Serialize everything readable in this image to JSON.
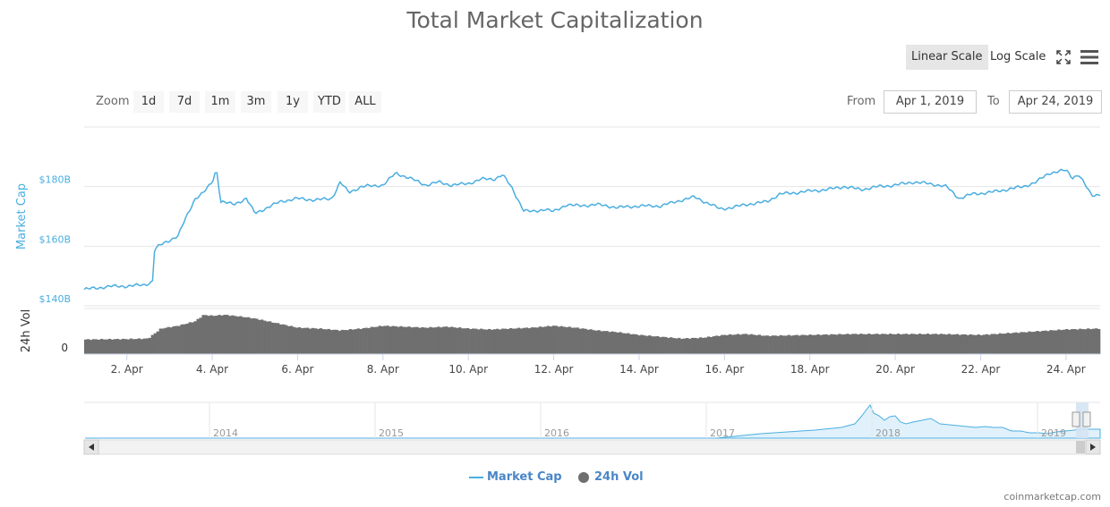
{
  "header": {
    "title": "Total Market Capitalization",
    "linear_label": "Linear Scale",
    "log_label": "Log Scale"
  },
  "icons": {
    "fullscreen": "fullscreen-icon",
    "menu": "menu-icon"
  },
  "zoom": {
    "label": "Zoom",
    "buttons": [
      "1d",
      "7d",
      "1m",
      "3m",
      "1y",
      "YTD",
      "ALL"
    ]
  },
  "range": {
    "from_label": "From",
    "from_value": "Apr 1, 2019",
    "to_label": "To",
    "to_value": "Apr 24, 2019"
  },
  "navigator": {
    "years": [
      "2014",
      "2015",
      "2016",
      "2017",
      "2018",
      "2019"
    ]
  },
  "legend": {
    "market_cap": "Market Cap",
    "vol": "24h Vol"
  },
  "credit": "coinmarketcap.com",
  "colors": {
    "market_cap": "#4aaee0",
    "volume": "#6f6f6f",
    "title": "#666666"
  },
  "chart_data": {
    "type": "line",
    "title": "Total Market Capitalization",
    "x_labels": [
      "2. Apr",
      "4. Apr",
      "6. Apr",
      "8. Apr",
      "10. Apr",
      "12. Apr",
      "14. Apr",
      "16. Apr",
      "18. Apr",
      "20. Apr",
      "22. Apr",
      "24. Apr"
    ],
    "xlim": [
      1.0,
      24.8
    ],
    "y_axis": {
      "label": "Market Cap",
      "unit": "B",
      "ticks": [
        "$140B",
        "$160B",
        "$180B"
      ],
      "ylim": [
        140,
        200
      ]
    },
    "vol_axis": {
      "label": "24h Vol",
      "ticks": [
        "0"
      ]
    },
    "series": [
      {
        "name": "Market Cap",
        "x": [
          1.0,
          1.3,
          1.6,
          2.0,
          2.4,
          2.6,
          2.65,
          2.8,
          3.0,
          3.2,
          3.4,
          3.6,
          3.8,
          4.0,
          4.1,
          4.2,
          4.5,
          4.8,
          5.0,
          5.3,
          5.6,
          6.0,
          6.4,
          6.8,
          7.0,
          7.2,
          7.5,
          8.0,
          8.3,
          8.6,
          9.0,
          9.3,
          9.6,
          10.0,
          10.3,
          10.6,
          10.8,
          11.0,
          11.3,
          11.5,
          11.8,
          12.0,
          12.3,
          12.6,
          13.0,
          13.5,
          14.0,
          14.5,
          15.0,
          15.3,
          15.6,
          15.9,
          16.2,
          16.5,
          16.8,
          17.0,
          17.3,
          17.7,
          18.0,
          18.4,
          18.8,
          19.2,
          19.6,
          20.0,
          20.4,
          20.8,
          21.2,
          21.5,
          21.8,
          22.2,
          22.6,
          23.0,
          23.3,
          23.6,
          23.8,
          24.0,
          24.15,
          24.3,
          24.6,
          24.8
        ],
        "values": [
          145.5,
          146.0,
          146.5,
          146.6,
          147.0,
          148.0,
          159.0,
          160.5,
          162.0,
          163.5,
          170.0,
          176.0,
          178.0,
          181.5,
          186.0,
          175.0,
          174.0,
          176.0,
          171.0,
          173.0,
          175.0,
          176.0,
          175.5,
          176.0,
          181.5,
          178.0,
          180.0,
          180.5,
          184.5,
          183.0,
          180.5,
          181.5,
          180.5,
          181.0,
          182.5,
          182.5,
          184.0,
          180.0,
          172.0,
          171.5,
          172.5,
          171.5,
          174.0,
          173.5,
          174.0,
          173.0,
          173.5,
          173.5,
          175.5,
          176.5,
          174.5,
          172.5,
          173.0,
          174.0,
          174.5,
          175.0,
          177.5,
          178.0,
          178.5,
          179.0,
          180.0,
          179.0,
          180.0,
          180.5,
          181.5,
          181.0,
          180.0,
          176.0,
          177.5,
          178.0,
          179.0,
          180.0,
          181.5,
          184.5,
          185.0,
          185.5,
          183.0,
          184.0,
          177.0,
          177.5
        ]
      },
      {
        "name": "24h Vol",
        "x": [
          1.0,
          2.0,
          2.5,
          2.8,
          3.2,
          3.6,
          3.8,
          4.0,
          4.3,
          4.7,
          5.0,
          5.5,
          6.0,
          6.5,
          7.0,
          7.5,
          8.0,
          8.5,
          9.0,
          9.5,
          10.0,
          10.5,
          11.0,
          11.5,
          12.0,
          12.5,
          13.0,
          13.5,
          14.0,
          14.5,
          15.0,
          15.5,
          16.0,
          16.5,
          17.0,
          18.0,
          19.0,
          20.0,
          21.0,
          22.0,
          23.0,
          24.0,
          24.8
        ],
        "values": [
          0.32,
          0.33,
          0.34,
          0.56,
          0.62,
          0.72,
          0.86,
          0.84,
          0.86,
          0.82,
          0.78,
          0.68,
          0.58,
          0.56,
          0.52,
          0.56,
          0.62,
          0.6,
          0.58,
          0.6,
          0.56,
          0.54,
          0.56,
          0.58,
          0.62,
          0.58,
          0.52,
          0.48,
          0.42,
          0.38,
          0.34,
          0.36,
          0.42,
          0.44,
          0.4,
          0.42,
          0.44,
          0.44,
          0.44,
          0.42,
          0.48,
          0.54,
          0.56
        ]
      }
    ]
  }
}
